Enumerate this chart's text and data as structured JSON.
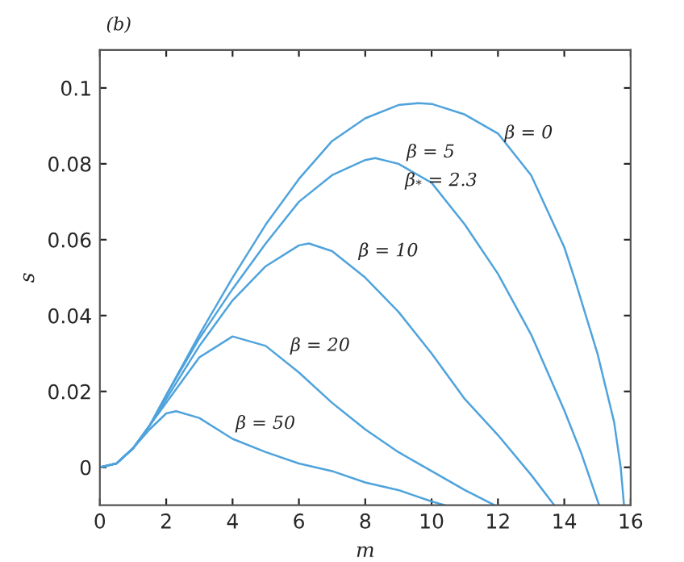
{
  "chart_data": {
    "type": "line",
    "xlabel": "m",
    "ylabel": "s",
    "xlim": [
      0,
      16
    ],
    "xticks": [
      0,
      2,
      4,
      6,
      8,
      10,
      12,
      14,
      16
    ],
    "ylim": [
      -0.01,
      0.11
    ],
    "yticks": [
      0,
      0.02,
      0.04,
      0.06,
      0.08,
      0.1
    ],
    "grid": false,
    "marker": "none",
    "line_style": "solid",
    "series": [
      {
        "color": "#4fa3dc",
        "x": [
          0,
          0.5,
          1,
          1.5,
          2,
          3,
          4,
          5,
          6,
          7,
          8,
          9,
          9.6,
          10,
          11,
          12,
          13,
          14,
          14.3,
          15,
          15.5,
          15.7,
          15.8
        ],
        "values": [
          0,
          0.001,
          0.005,
          0.011,
          0.019,
          0.035,
          0.05,
          0.064,
          0.076,
          0.086,
          0.092,
          0.0955,
          0.096,
          0.0958,
          0.093,
          0.088,
          0.077,
          0.058,
          0.05,
          0.03,
          0.012,
          0,
          -0.01
        ]
      },
      {
        "color": "#4fa3dc",
        "x": [
          0,
          0.5,
          1,
          1.5,
          2,
          3,
          4,
          5,
          6,
          7,
          8,
          8.3,
          9,
          10,
          11,
          12,
          13,
          14,
          14.5,
          15.05
        ],
        "values": [
          0,
          0.001,
          0.005,
          0.011,
          0.019,
          0.034,
          0.047,
          0.059,
          0.07,
          0.077,
          0.081,
          0.0815,
          0.08,
          0.075,
          0.064,
          0.051,
          0.035,
          0.015,
          0.004,
          -0.01
        ]
      },
      {
        "color": "#4fa3dc",
        "x": [
          0,
          0.5,
          1,
          1.5,
          2,
          3,
          4,
          5,
          6,
          6.3,
          7,
          8,
          9,
          10,
          11,
          12,
          13,
          13.7
        ],
        "values": [
          0,
          0.001,
          0.005,
          0.011,
          0.018,
          0.032,
          0.044,
          0.053,
          0.0585,
          0.059,
          0.057,
          0.05,
          0.041,
          0.03,
          0.018,
          0.0085,
          -0.002,
          -0.01
        ]
      },
      {
        "color": "#4fa3dc",
        "x": [
          0,
          0.5,
          1,
          1.5,
          2,
          3,
          4,
          5,
          6,
          7,
          8,
          9,
          10,
          11,
          11.9
        ],
        "values": [
          0,
          0.001,
          0.005,
          0.011,
          0.017,
          0.029,
          0.0345,
          0.032,
          0.025,
          0.017,
          0.01,
          0.004,
          -0.001,
          -0.006,
          -0.01
        ]
      },
      {
        "color": "#4fa3dc",
        "x": [
          0,
          0.5,
          1,
          1.5,
          2,
          2.3,
          3,
          4,
          5,
          6,
          7,
          8,
          9,
          10,
          10.4
        ],
        "values": [
          0,
          0.001,
          0.005,
          0.01,
          0.0142,
          0.0148,
          0.013,
          0.0075,
          0.004,
          0.001,
          -0.001,
          -0.004,
          -0.006,
          -0.009,
          -0.01
        ]
      }
    ],
    "annotations": [
      "(b)",
      "β = 0",
      "β = 5",
      "β$_{*}$ = 2.3",
      "β = 10",
      "β = 20",
      "β = 50"
    ]
  }
}
